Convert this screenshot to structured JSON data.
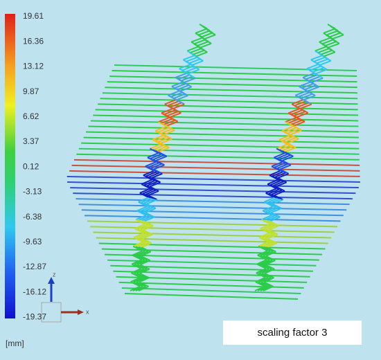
{
  "legend": {
    "labels": [
      "19.61",
      "16.36",
      "13.12",
      "9.87",
      "6.62",
      "3.37",
      "0.12",
      "-3.13",
      "-6.38",
      "-9.63",
      "-12.87",
      "-16.12",
      "-19.37"
    ],
    "unit": "[mm]"
  },
  "axes": {
    "z": "z",
    "x": "x"
  },
  "caption": "scaling factor 3"
}
